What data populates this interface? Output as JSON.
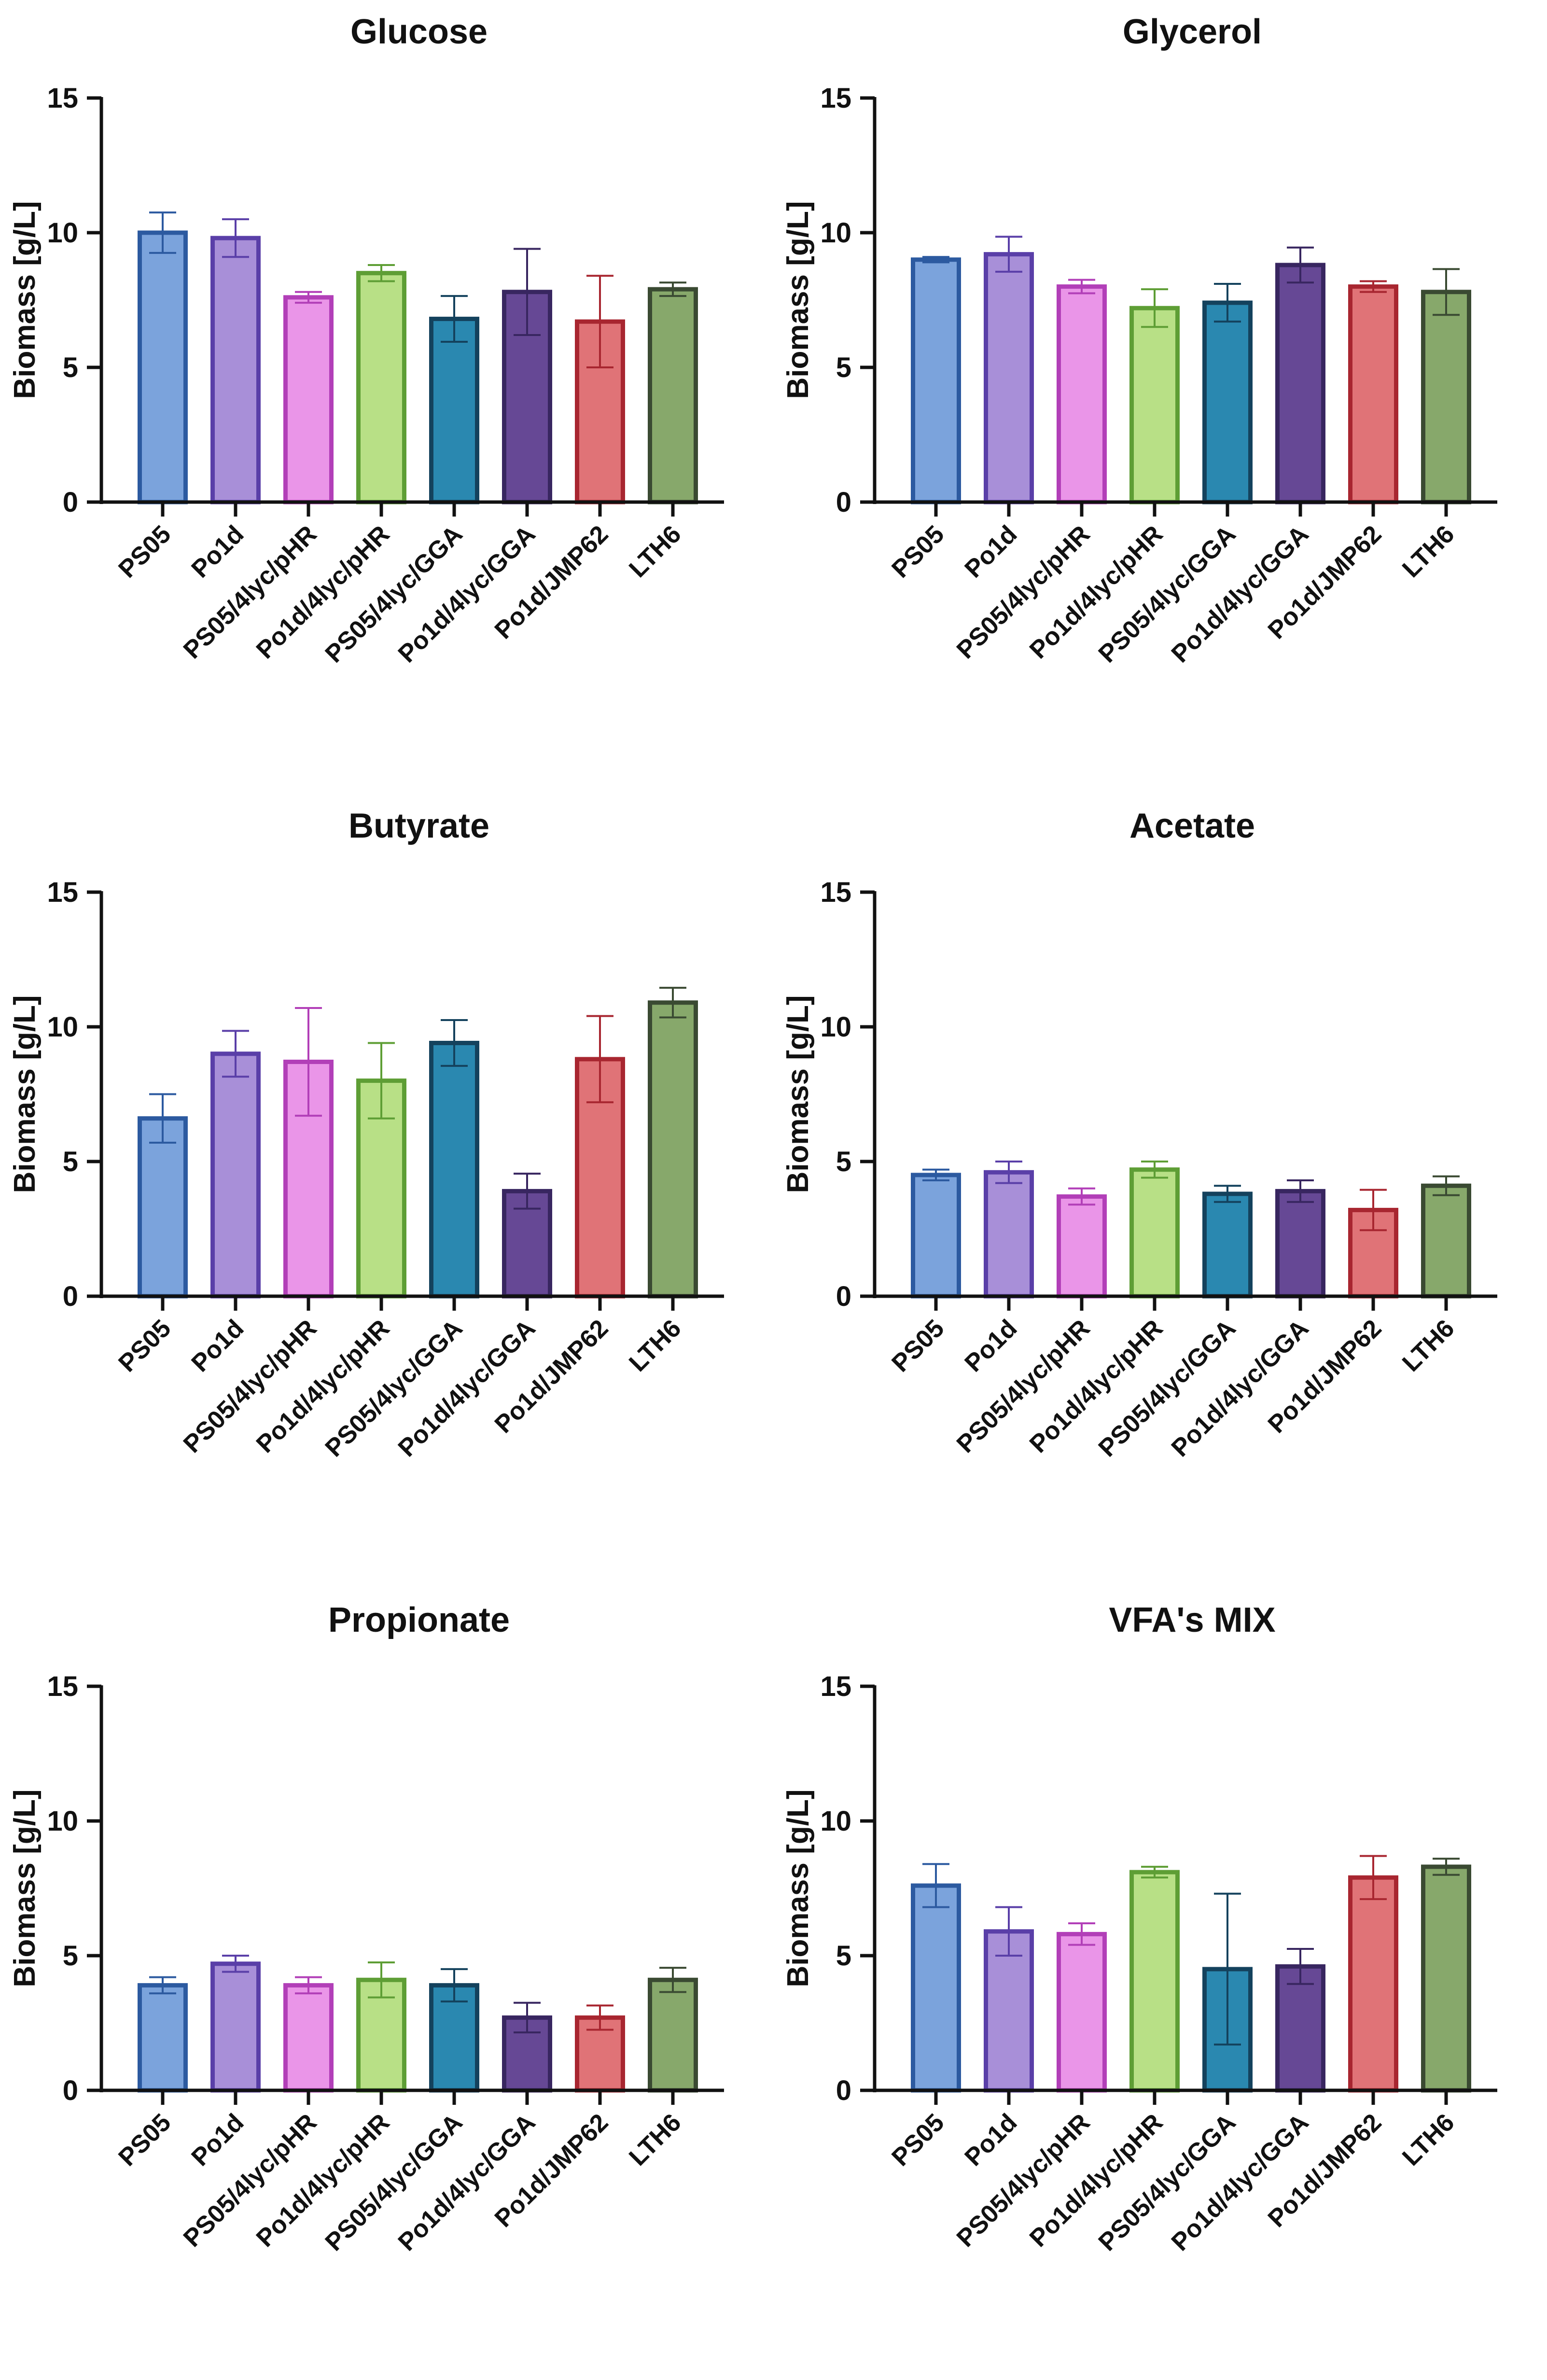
{
  "chart_data": [
    {
      "type": "bar",
      "title": "Glucose",
      "ylabel": "Biomass [g/L]",
      "xlabel": "",
      "ylim": [
        0,
        15
      ],
      "yticks": [
        "0",
        "5",
        "10",
        "15"
      ],
      "categories": [
        "PS05",
        "Po1d",
        "PS05/4lyc/pHR",
        "Po1d/4lyc/pHR",
        "PS05/4lyc/GGA",
        "Po1d/4lyc/GGA",
        "Po1d/JMP62",
        "LTH6"
      ],
      "values": [
        10.0,
        9.8,
        7.6,
        8.5,
        6.8,
        7.8,
        6.7,
        7.9
      ],
      "errors": [
        0.75,
        0.7,
        0.2,
        0.3,
        0.85,
        1.6,
        1.7,
        0.25
      ]
    },
    {
      "type": "bar",
      "title": "Glycerol",
      "ylabel": "Biomass [g/L]",
      "xlabel": "",
      "ylim": [
        0,
        15
      ],
      "yticks": [
        "0",
        "5",
        "10",
        "15"
      ],
      "categories": [
        "PS05",
        "Po1d",
        "PS05/4lyc/pHR",
        "Po1d/4lyc/pHR",
        "PS05/4lyc/GGA",
        "Po1d/4lyc/GGA",
        "Po1d/JMP62",
        "LTH6"
      ],
      "values": [
        9.0,
        9.2,
        8.0,
        7.2,
        7.4,
        8.8,
        8.0,
        7.8
      ],
      "errors": [
        0.1,
        0.65,
        0.25,
        0.7,
        0.7,
        0.65,
        0.2,
        0.85
      ]
    },
    {
      "type": "bar",
      "title": "Butyrate",
      "ylabel": "Biomass [g/L]",
      "xlabel": "",
      "ylim": [
        0,
        15
      ],
      "yticks": [
        "0",
        "5",
        "10",
        "15"
      ],
      "categories": [
        "PS05",
        "Po1d",
        "PS05/4lyc/pHR",
        "Po1d/4lyc/pHR",
        "PS05/4lyc/GGA",
        "Po1d/4lyc/GGA",
        "Po1d/JMP62",
        "LTH6"
      ],
      "values": [
        6.6,
        9.0,
        8.7,
        8.0,
        9.4,
        3.9,
        8.8,
        10.9
      ],
      "errors": [
        0.9,
        0.85,
        2.0,
        1.4,
        0.85,
        0.65,
        1.6,
        0.55
      ]
    },
    {
      "type": "bar",
      "title": "Acetate",
      "ylabel": "Biomass [g/L]",
      "xlabel": "",
      "ylim": [
        0,
        15
      ],
      "yticks": [
        "0",
        "5",
        "10",
        "15"
      ],
      "categories": [
        "PS05",
        "Po1d",
        "PS05/4lyc/pHR",
        "Po1d/4lyc/pHR",
        "PS05/4lyc/GGA",
        "Po1d/4lyc/GGA",
        "Po1d/JMP62",
        "LTH6"
      ],
      "values": [
        4.5,
        4.6,
        3.7,
        4.7,
        3.8,
        3.9,
        3.2,
        4.1
      ],
      "errors": [
        0.2,
        0.4,
        0.3,
        0.3,
        0.3,
        0.4,
        0.75,
        0.35
      ]
    },
    {
      "type": "bar",
      "title": "Propionate",
      "ylabel": "Biomass [g/L]",
      "xlabel": "",
      "ylim": [
        0,
        15
      ],
      "yticks": [
        "0",
        "5",
        "10",
        "15"
      ],
      "categories": [
        "PS05",
        "Po1d",
        "PS05/4lyc/pHR",
        "Po1d/4lyc/pHR",
        "PS05/4lyc/GGA",
        "Po1d/4lyc/GGA",
        "Po1d/JMP62",
        "LTH6"
      ],
      "values": [
        3.9,
        4.7,
        3.9,
        4.1,
        3.9,
        2.7,
        2.7,
        4.1
      ],
      "errors": [
        0.3,
        0.3,
        0.3,
        0.65,
        0.6,
        0.55,
        0.45,
        0.45
      ]
    },
    {
      "type": "bar",
      "title": "VFA's MIX",
      "ylabel": "Biomass [g/L]",
      "xlabel": "",
      "ylim": [
        0,
        15
      ],
      "yticks": [
        "0",
        "5",
        "10",
        "15"
      ],
      "categories": [
        "PS05",
        "Po1d",
        "PS05/4lyc/pHR",
        "Po1d/4lyc/pHR",
        "PS05/4lyc/GGA",
        "Po1d/4lyc/GGA",
        "Po1d/JMP62",
        "LTH6"
      ],
      "values": [
        7.6,
        5.9,
        5.8,
        8.1,
        4.5,
        4.6,
        7.9,
        8.3
      ],
      "errors": [
        0.8,
        0.9,
        0.4,
        0.2,
        2.8,
        0.65,
        0.8,
        0.3
      ]
    }
  ],
  "colors": {
    "fills": [
      "#7ba3dc",
      "#a88fd8",
      "#ea95e8",
      "#b8e086",
      "#2a88b0",
      "#664895",
      "#e07377",
      "#87a86b"
    ],
    "strokes": [
      "#2c5aa0",
      "#5a3fa8",
      "#b23fb8",
      "#5e9e35",
      "#14425d",
      "#382660",
      "#a82630",
      "#3a4a32"
    ],
    "axis": "#111111"
  }
}
